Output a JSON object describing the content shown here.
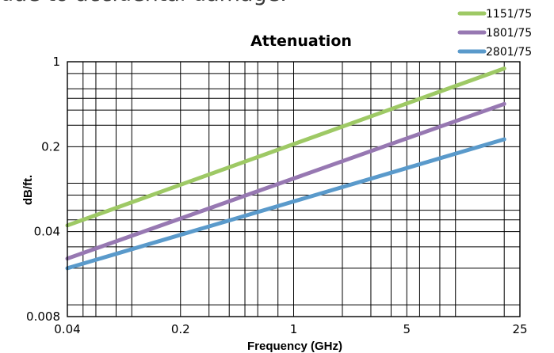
{
  "page": {
    "top_text": "due to accidental damage."
  },
  "chart_data": {
    "type": "line",
    "title": "Attenuation",
    "xlabel": "Frequency (GHz)",
    "ylabel": "dB/ft.",
    "xscale": "log",
    "yscale": "log",
    "xlim": [
      0.04,
      25
    ],
    "ylim": [
      0.008,
      1
    ],
    "xticks": [
      {
        "value": 0.04,
        "label": "0.04"
      },
      {
        "value": 0.2,
        "label": "0.2"
      },
      {
        "value": 1,
        "label": "1"
      },
      {
        "value": 5,
        "label": "5"
      },
      {
        "value": 25,
        "label": "25"
      }
    ],
    "yticks": [
      {
        "value": 0.008,
        "label": "0.008"
      },
      {
        "value": 0.04,
        "label": "0.04"
      },
      {
        "value": 0.2,
        "label": "0.2"
      },
      {
        "value": 1,
        "label": "1"
      }
    ],
    "grid": true,
    "legend_position": "top-right",
    "series": [
      {
        "name": "1151/75",
        "color": "#9ec965",
        "x": [
          0.04,
          20
        ],
        "y": [
          0.045,
          0.88
        ]
      },
      {
        "name": "1801/75",
        "color": "#9778b2",
        "x": [
          0.04,
          20
        ],
        "y": [
          0.024,
          0.45
        ]
      },
      {
        "name": "2801/75",
        "color": "#5a9acb",
        "x": [
          0.04,
          20
        ],
        "y": [
          0.02,
          0.23
        ]
      }
    ]
  }
}
